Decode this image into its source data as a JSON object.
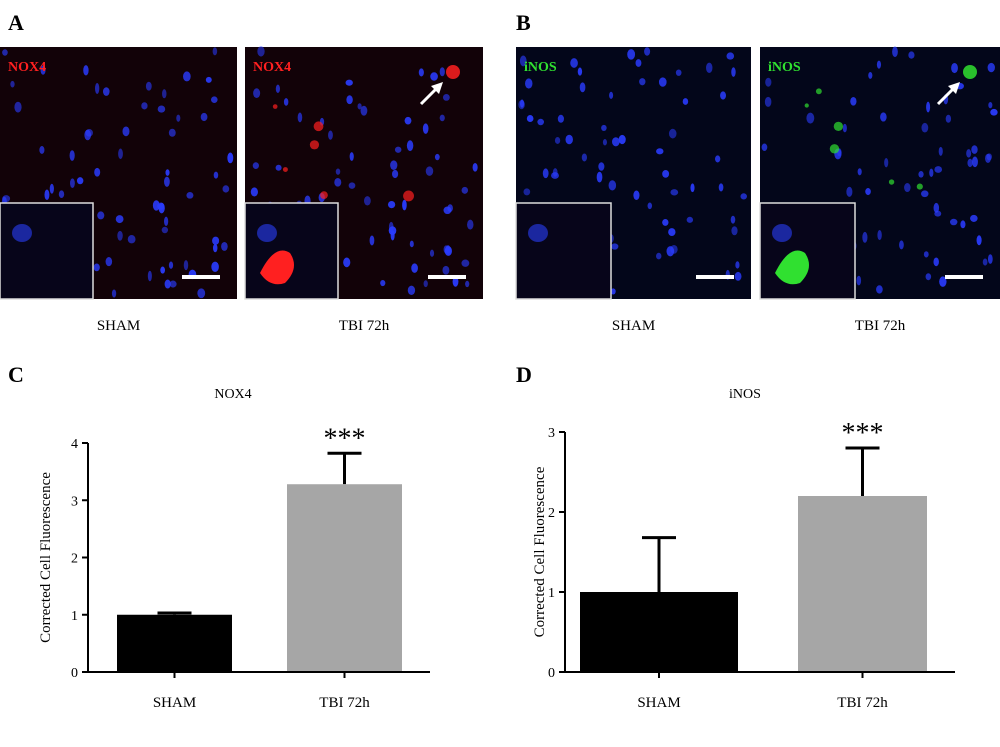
{
  "panel_labels": [
    "A",
    "B",
    "C",
    "D"
  ],
  "micrographs": [
    {
      "stain": "NOX4",
      "caption": "SHAM"
    },
    {
      "stain": "NOX4",
      "caption": "TBI 72h"
    },
    {
      "stain": "iNOS",
      "caption": "SHAM"
    },
    {
      "stain": "iNOS",
      "caption": "TBI 72h"
    }
  ],
  "chart_data": [
    {
      "type": "bar",
      "title": "NOX4",
      "ylabel": "Corrected Cell Fluorescence",
      "categories": [
        "SHAM",
        "TBI 72h"
      ],
      "values": [
        1.0,
        3.28
      ],
      "errors": [
        0.03,
        0.54
      ],
      "colors": [
        "#000000",
        "#a6a6a6"
      ],
      "annotations": [
        {
          "text": "***",
          "category": "TBI 72h"
        }
      ],
      "ylim": [
        0,
        4
      ],
      "yticks": [
        0,
        1,
        2,
        3,
        4
      ]
    },
    {
      "type": "bar",
      "title": "iNOS",
      "ylabel": "Corrected Cell Fluorescence",
      "categories": [
        "SHAM",
        "TBI 72h"
      ],
      "values": [
        1.0,
        2.2
      ],
      "errors": [
        0.68,
        0.6
      ],
      "colors": [
        "#000000",
        "#a6a6a6"
      ],
      "annotations": [
        {
          "text": "***",
          "category": "TBI 72h"
        }
      ],
      "ylim": [
        0,
        3
      ],
      "yticks": [
        0,
        1,
        2,
        3
      ]
    }
  ]
}
